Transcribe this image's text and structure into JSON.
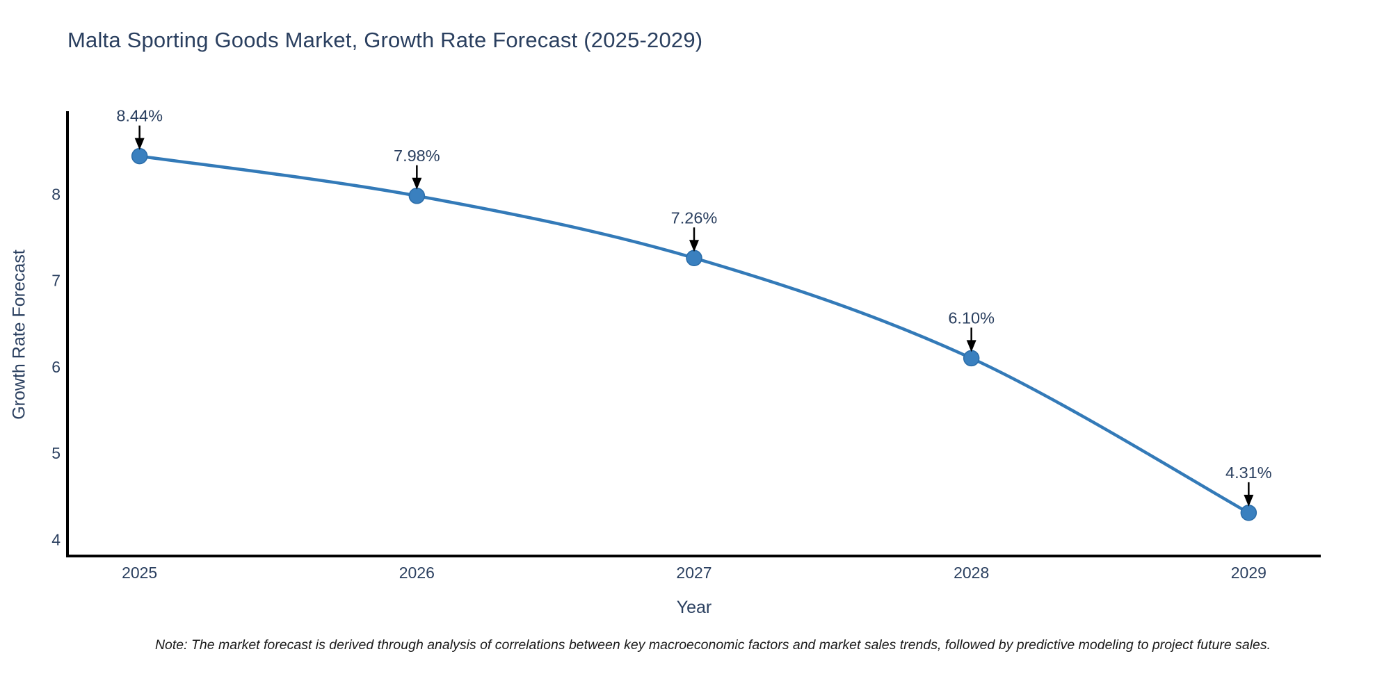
{
  "title": "Malta Sporting Goods Market, Growth Rate Forecast (2025-2029)",
  "note": "Note: The market forecast is derived through analysis of correlations between key macroeconomic factors and market sales trends, followed by predictive modeling to project future sales.",
  "chart_data": {
    "type": "line",
    "title": "Malta Sporting Goods Market, Growth Rate Forecast (2025-2029)",
    "xlabel": "Year",
    "ylabel": "Growth Rate Forecast",
    "x": [
      2025,
      2026,
      2027,
      2028,
      2029
    ],
    "values": [
      8.44,
      7.98,
      7.26,
      6.1,
      4.31
    ],
    "point_labels": [
      "8.44%",
      "7.98%",
      "7.26%",
      "6.10%",
      "4.31%"
    ],
    "xticks": [
      2025,
      2026,
      2027,
      2028,
      2029
    ],
    "yticks": [
      4,
      5,
      6,
      7,
      8
    ],
    "xlim": [
      2024.74,
      2029.26
    ],
    "ylim": [
      3.81,
      8.96
    ],
    "grid": false,
    "legend": "none",
    "line_color": "#337ab8",
    "marker_color": "#3a80bf",
    "marker_edge_color": "#2a6ca8",
    "axis_color": "#000000",
    "tick_color": "#2a3f5f",
    "annotation_text_color": "#2a3f5f",
    "annotation_arrow_color": "#000000",
    "background_color": "#ffffff"
  }
}
